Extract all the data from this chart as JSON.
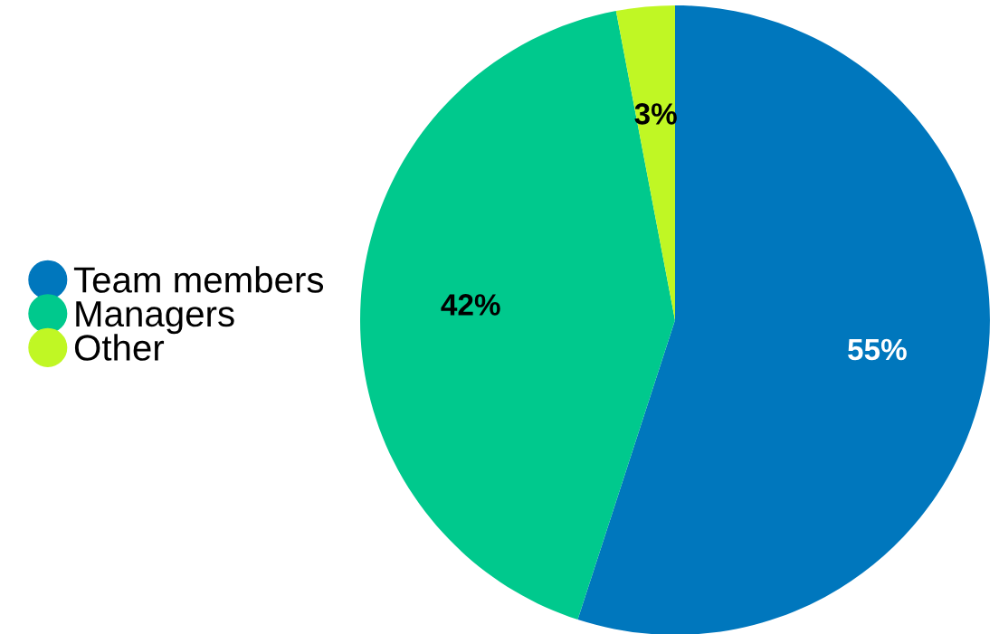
{
  "chart_data": {
    "type": "pie",
    "categories": [
      "Team members",
      "Managers",
      "Other"
    ],
    "values": [
      55,
      42,
      3
    ],
    "colors": [
      "#0077bd",
      "#00c98d",
      "#c0f724"
    ],
    "value_labels": [
      "55%",
      "42%",
      "3%"
    ],
    "legend": "left"
  }
}
